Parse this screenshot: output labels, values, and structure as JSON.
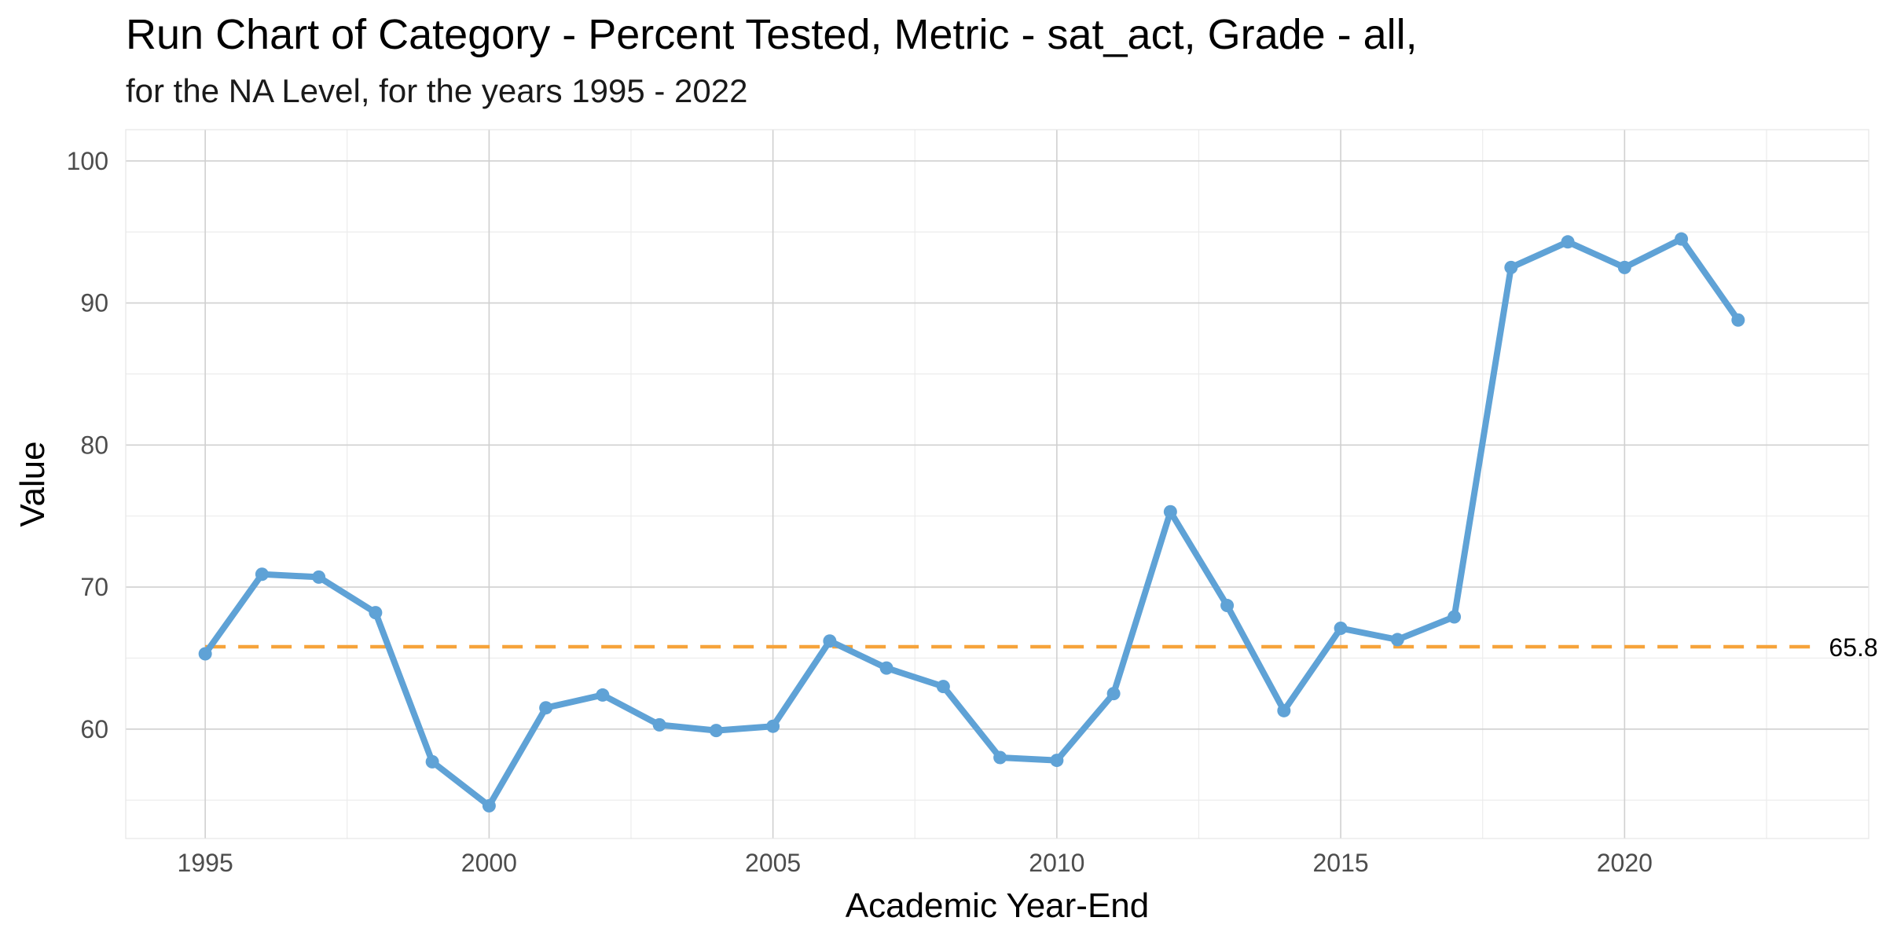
{
  "chart_data": {
    "type": "line",
    "title": "Run Chart of Category - Percent Tested, Metric - sat_act, Grade - all,",
    "subtitle": "for the NA Level, for the years 1995 - 2022",
    "xlabel": "Academic Year-End",
    "ylabel": "Value",
    "x": [
      1995,
      1996,
      1997,
      1998,
      1999,
      2000,
      2001,
      2002,
      2003,
      2004,
      2005,
      2006,
      2007,
      2008,
      2009,
      2010,
      2011,
      2012,
      2013,
      2014,
      2015,
      2016,
      2017,
      2018,
      2019,
      2020,
      2021,
      2022
    ],
    "series": [
      {
        "values": [
          65.3,
          70.9,
          70.7,
          68.2,
          57.7,
          54.6,
          61.5,
          62.4,
          60.3,
          59.9,
          60.2,
          66.2,
          64.3,
          63.0,
          58.0,
          57.8,
          62.5,
          75.3,
          68.7,
          61.3,
          67.1,
          66.3,
          67.9,
          92.5,
          94.3,
          92.5,
          94.5,
          88.8
        ],
        "color": "#5fa2d6"
      }
    ],
    "reference_line": {
      "value": 65.8,
      "label": "65.8",
      "style": "dashed",
      "color": "#f6a33a"
    },
    "xlim": [
      1993.6,
      2024.3
    ],
    "ylim": [
      52.3,
      102.2
    ],
    "x_ticks": [
      1995,
      2000,
      2005,
      2010,
      2015,
      2020
    ],
    "x_minor_ticks": [
      1997.5,
      2002.5,
      2007.5,
      2012.5,
      2017.5,
      2022.5
    ],
    "y_ticks": [
      60,
      70,
      80,
      90,
      100
    ],
    "y_minor_ticks": [
      55,
      65,
      75,
      85,
      95
    ],
    "grid": true,
    "legend": "none"
  }
}
